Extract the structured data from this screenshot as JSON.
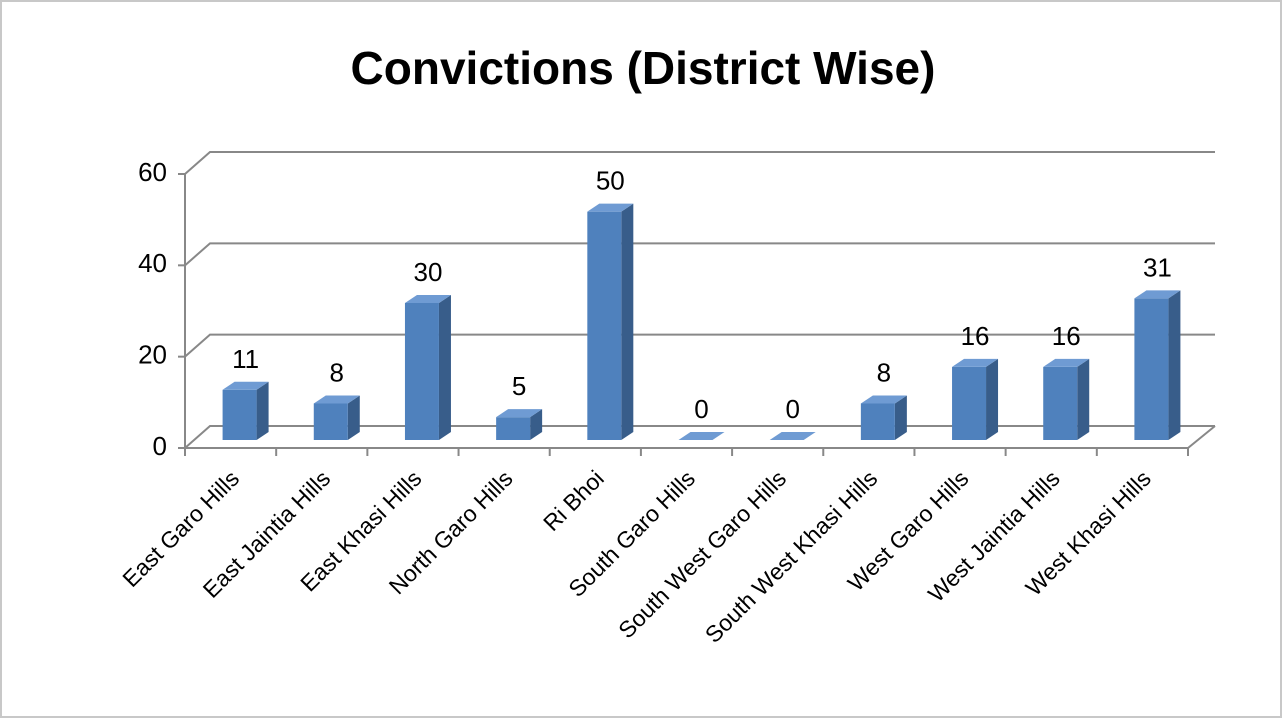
{
  "chart_data": {
    "type": "bar3d",
    "title": "Convictions (District Wise)",
    "categories": [
      "East Garo Hills",
      "East Jaintia Hills",
      "East Khasi Hills",
      "North Garo Hills",
      "Ri Bhoi",
      "South Garo Hills",
      "South West Garo Hills",
      "South West Khasi Hills",
      "West Garo Hills",
      "West Jaintia Hills",
      "West Khasi Hills"
    ],
    "values": [
      11,
      8,
      30,
      5,
      50,
      0,
      0,
      8,
      16,
      16,
      31
    ],
    "color": "#4f81bd",
    "ylim": [
      0,
      60
    ],
    "yticks": [
      0,
      20,
      40,
      60
    ],
    "grid": true
  }
}
